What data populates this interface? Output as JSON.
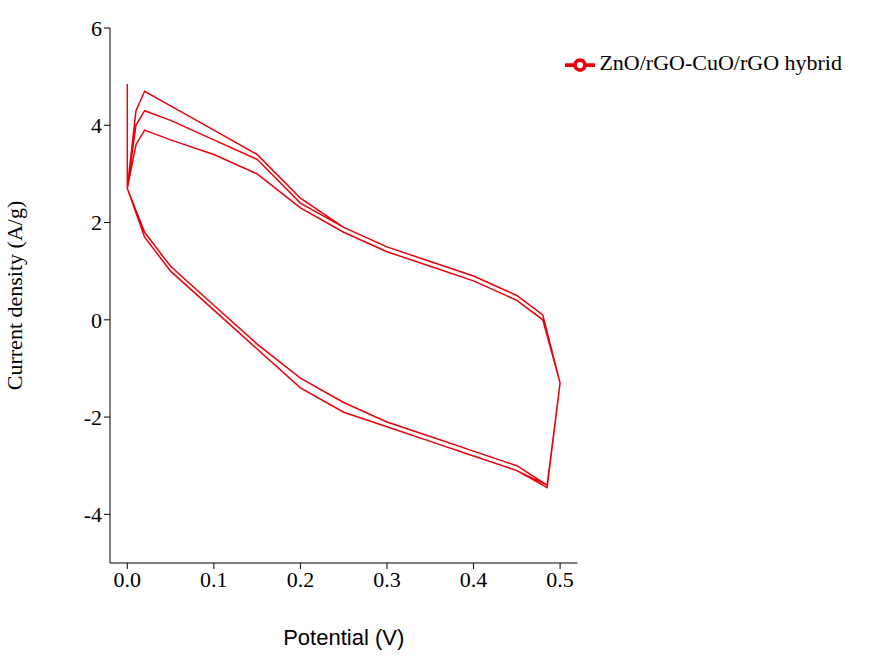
{
  "chart_data": {
    "type": "line",
    "x_label": "Potential (V)",
    "y_label": "Current density (A/g)",
    "x": [
      0.0,
      0.0,
      0.01,
      0.02,
      0.05,
      0.1,
      0.15,
      0.2,
      0.25,
      0.3,
      0.35,
      0.4,
      0.45,
      0.48,
      0.5,
      0.485,
      0.45,
      0.4,
      0.35,
      0.3,
      0.25,
      0.2,
      0.15,
      0.1,
      0.05,
      0.02,
      0.0,
      0.0,
      0.01,
      0.02,
      0.05,
      0.1,
      0.15,
      0.2,
      0.25,
      0.3,
      0.35,
      0.4,
      0.45,
      0.48,
      0.5,
      0.485,
      0.45,
      0.4,
      0.35,
      0.3,
      0.25,
      0.2,
      0.15,
      0.1,
      0.05,
      0.02,
      0.0,
      0.0,
      0.01,
      0.02,
      0.05,
      0.1,
      0.15,
      0.2,
      0.25,
      0.3,
      0.35,
      0.4,
      0.45,
      0.48,
      0.5,
      0.485,
      0.45,
      0.4,
      0.35,
      0.3,
      0.25,
      0.2,
      0.15,
      0.1,
      0.05,
      0.02,
      0.0
    ],
    "series": [
      {
        "name": "ZnO/rGO-CuO/rGO hybrid",
        "color": "#e8000b",
        "values": [
          4.85,
          2.7,
          3.6,
          3.9,
          3.7,
          3.4,
          3.0,
          2.3,
          1.8,
          1.4,
          1.1,
          0.8,
          0.4,
          0.0,
          -1.3,
          -3.4,
          -3.0,
          -2.7,
          -2.4,
          -2.1,
          -1.7,
          -1.2,
          -0.5,
          0.3,
          1.1,
          1.8,
          2.7,
          2.7,
          4.0,
          4.3,
          4.1,
          3.7,
          3.3,
          2.4,
          1.9,
          1.5,
          1.2,
          0.9,
          0.5,
          0.1,
          -1.3,
          -3.4,
          -3.1,
          -2.8,
          -2.5,
          -2.2,
          -1.9,
          -1.4,
          -0.6,
          0.2,
          1.0,
          1.7,
          2.7,
          2.7,
          4.3,
          4.7,
          4.4,
          3.9,
          3.4,
          2.5,
          1.9,
          1.5,
          1.2,
          0.9,
          0.5,
          0.1,
          -1.3,
          -3.45,
          -3.1,
          -2.8,
          -2.5,
          -2.2,
          -1.9,
          -1.4,
          -0.6,
          0.2,
          1.0,
          1.7,
          2.7
        ]
      }
    ],
    "xlim": [
      -0.02,
      0.52
    ],
    "xticks": [
      {
        "value": 0,
        "label": "0.0"
      },
      0.1,
      0.2,
      0.3,
      0.4,
      0.5
    ],
    "ylim": [
      -5,
      6
    ],
    "yticks": [
      -4,
      -2,
      0,
      2,
      4,
      6
    ],
    "legend": "upper right",
    "grid": false
  }
}
